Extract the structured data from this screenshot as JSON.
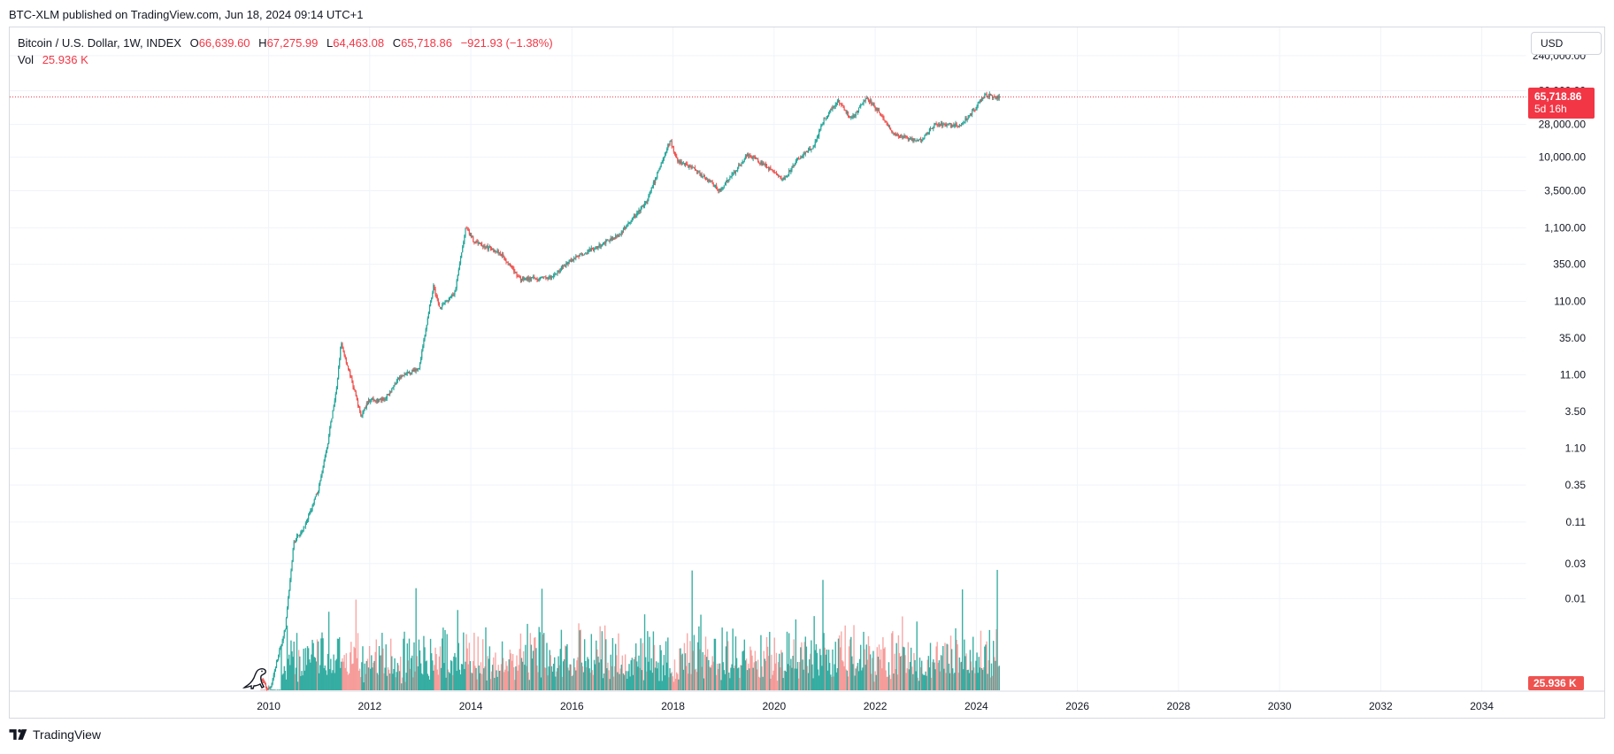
{
  "caption": "BTC-XLM published on TradingView.com, Jun 18, 2024 09:14 UTC+1",
  "legend": {
    "symbol": "Bitcoin / U.S. Dollar, 1W, INDEX",
    "open_label": "O",
    "open": "66,639.60",
    "high_label": "H",
    "high": "67,275.99",
    "low_label": "L",
    "low": "64,463.08",
    "close_label": "C",
    "close": "65,718.86",
    "change": "−921.93 (−1.38%)",
    "vol_label": "Vol",
    "vol": "25.936 K"
  },
  "currency_button": "USD",
  "price_badge": {
    "price": "65,718.86",
    "countdown": "5d 16h"
  },
  "volume_badge": "25.936 K",
  "footer_brand": "TradingView",
  "colors": {
    "up": "#26a69a",
    "down": "#ef5350",
    "badge": "#f23645",
    "grid": "#f0f3fa",
    "text": "#131722"
  },
  "chart_data": {
    "type": "candlestick",
    "scale": "log",
    "interval": "1W",
    "y_ticks": [
      "240,000.00",
      "80,000.00",
      "28,000.00",
      "10,000.00",
      "3,500.00",
      "1,100.00",
      "350.00",
      "110.00",
      "35.00",
      "11.00",
      "3.50",
      "1.10",
      "0.35",
      "0.11",
      "0.03",
      "0.01"
    ],
    "y_tick_values": [
      240000,
      80000,
      28000,
      10000,
      3500,
      1100,
      350,
      110,
      35,
      11,
      3.5,
      1.1,
      0.35,
      0.11,
      0.03,
      0.01
    ],
    "x_ticks": [
      "2010",
      "2012",
      "2014",
      "2016",
      "2018",
      "2020",
      "2022",
      "2024",
      "2026",
      "2028",
      "2030",
      "2032",
      "2034"
    ],
    "x_tick_years": [
      2010,
      2012,
      2014,
      2016,
      2018,
      2020,
      2022,
      2024,
      2026,
      2028,
      2030,
      2032,
      2034
    ],
    "x_range": [
      2009.85,
      2036.3
    ],
    "y_range": [
      0.0006,
      260000
    ],
    "last_price": 65718.86,
    "last_volume_k": 25.936,
    "price_path": [
      [
        2009.85,
        0.0009
      ],
      [
        2009.97,
        0.0006
      ],
      [
        2010.05,
        0.0006
      ],
      [
        2010.35,
        0.004
      ],
      [
        2010.52,
        0.06
      ],
      [
        2010.75,
        0.1
      ],
      [
        2011.0,
        0.3
      ],
      [
        2011.15,
        0.9
      ],
      [
        2011.38,
        9
      ],
      [
        2011.45,
        30
      ],
      [
        2011.6,
        13
      ],
      [
        2011.85,
        3
      ],
      [
        2012.0,
        5
      ],
      [
        2012.3,
        5
      ],
      [
        2012.6,
        10
      ],
      [
        2013.0,
        14
      ],
      [
        2013.28,
        180
      ],
      [
        2013.4,
        90
      ],
      [
        2013.7,
        140
      ],
      [
        2013.92,
        1100
      ],
      [
        2014.1,
        700
      ],
      [
        2014.6,
        500
      ],
      [
        2015.0,
        220
      ],
      [
        2015.6,
        230
      ],
      [
        2016.0,
        400
      ],
      [
        2016.6,
        650
      ],
      [
        2017.0,
        950
      ],
      [
        2017.5,
        2500
      ],
      [
        2017.96,
        17000
      ],
      [
        2018.1,
        9000
      ],
      [
        2018.5,
        6500
      ],
      [
        2018.95,
        3500
      ],
      [
        2019.5,
        11000
      ],
      [
        2019.9,
        7200
      ],
      [
        2020.2,
        5000
      ],
      [
        2020.5,
        9500
      ],
      [
        2020.8,
        14000
      ],
      [
        2021.0,
        32000
      ],
      [
        2021.28,
        60000
      ],
      [
        2021.55,
        33000
      ],
      [
        2021.85,
        66000
      ],
      [
        2022.1,
        40000
      ],
      [
        2022.4,
        20000
      ],
      [
        2022.9,
        16500
      ],
      [
        2023.2,
        28000
      ],
      [
        2023.7,
        27000
      ],
      [
        2023.95,
        42000
      ],
      [
        2024.2,
        70000
      ],
      [
        2024.46,
        65718.86
      ]
    ]
  }
}
